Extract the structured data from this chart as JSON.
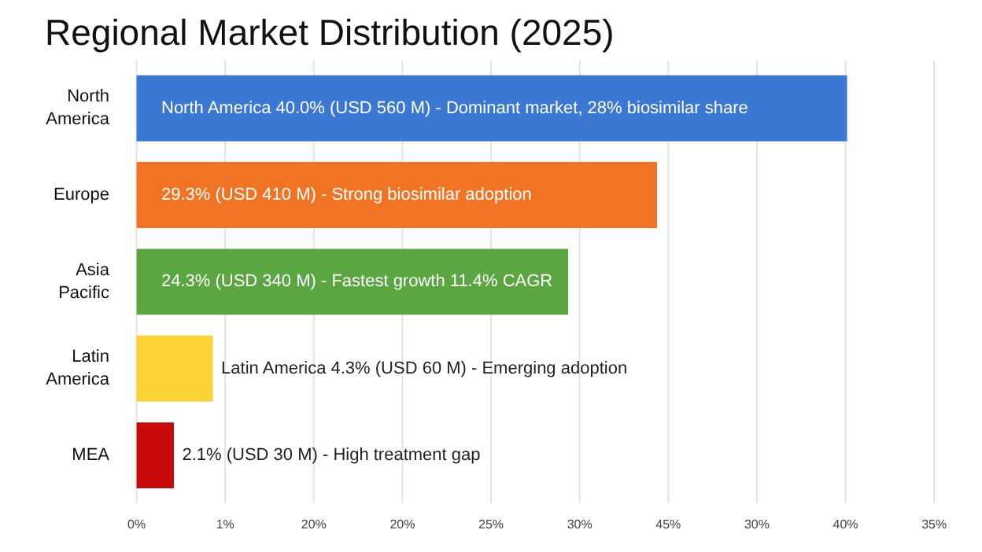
{
  "chart_data": {
    "type": "bar",
    "orientation": "horizontal",
    "title": "Regional Market Distribution (2025)",
    "categories": [
      "North America",
      "Europe",
      "Asia Pacific",
      "Latin America",
      "MEA"
    ],
    "values": [
      40.0,
      29.3,
      24.3,
      4.3,
      2.1
    ],
    "colors": [
      "#3a78d4",
      "#f07424",
      "#5aa640",
      "#fbd335",
      "#c80a0a"
    ],
    "value_labels": [
      "North America 40.0% (USD 560 M) - Dominant market, 28% biosimilar share",
      "29.3% (USD 410 M) - Strong biosimilar adoption",
      "24.3% (USD 340 M) - Fastest growth 11.4% CAGR",
      "Latin America 4.3% (USD 60 M) - Emerging adoption",
      "2.1% (USD 30 M) - High treatment gap"
    ],
    "annotations": [
      "0%",
      "1%",
      "20%",
      "20%",
      "25%",
      "30%",
      "45%",
      "30%",
      "40%",
      "35%"
    ],
    "grid": "x"
  }
}
